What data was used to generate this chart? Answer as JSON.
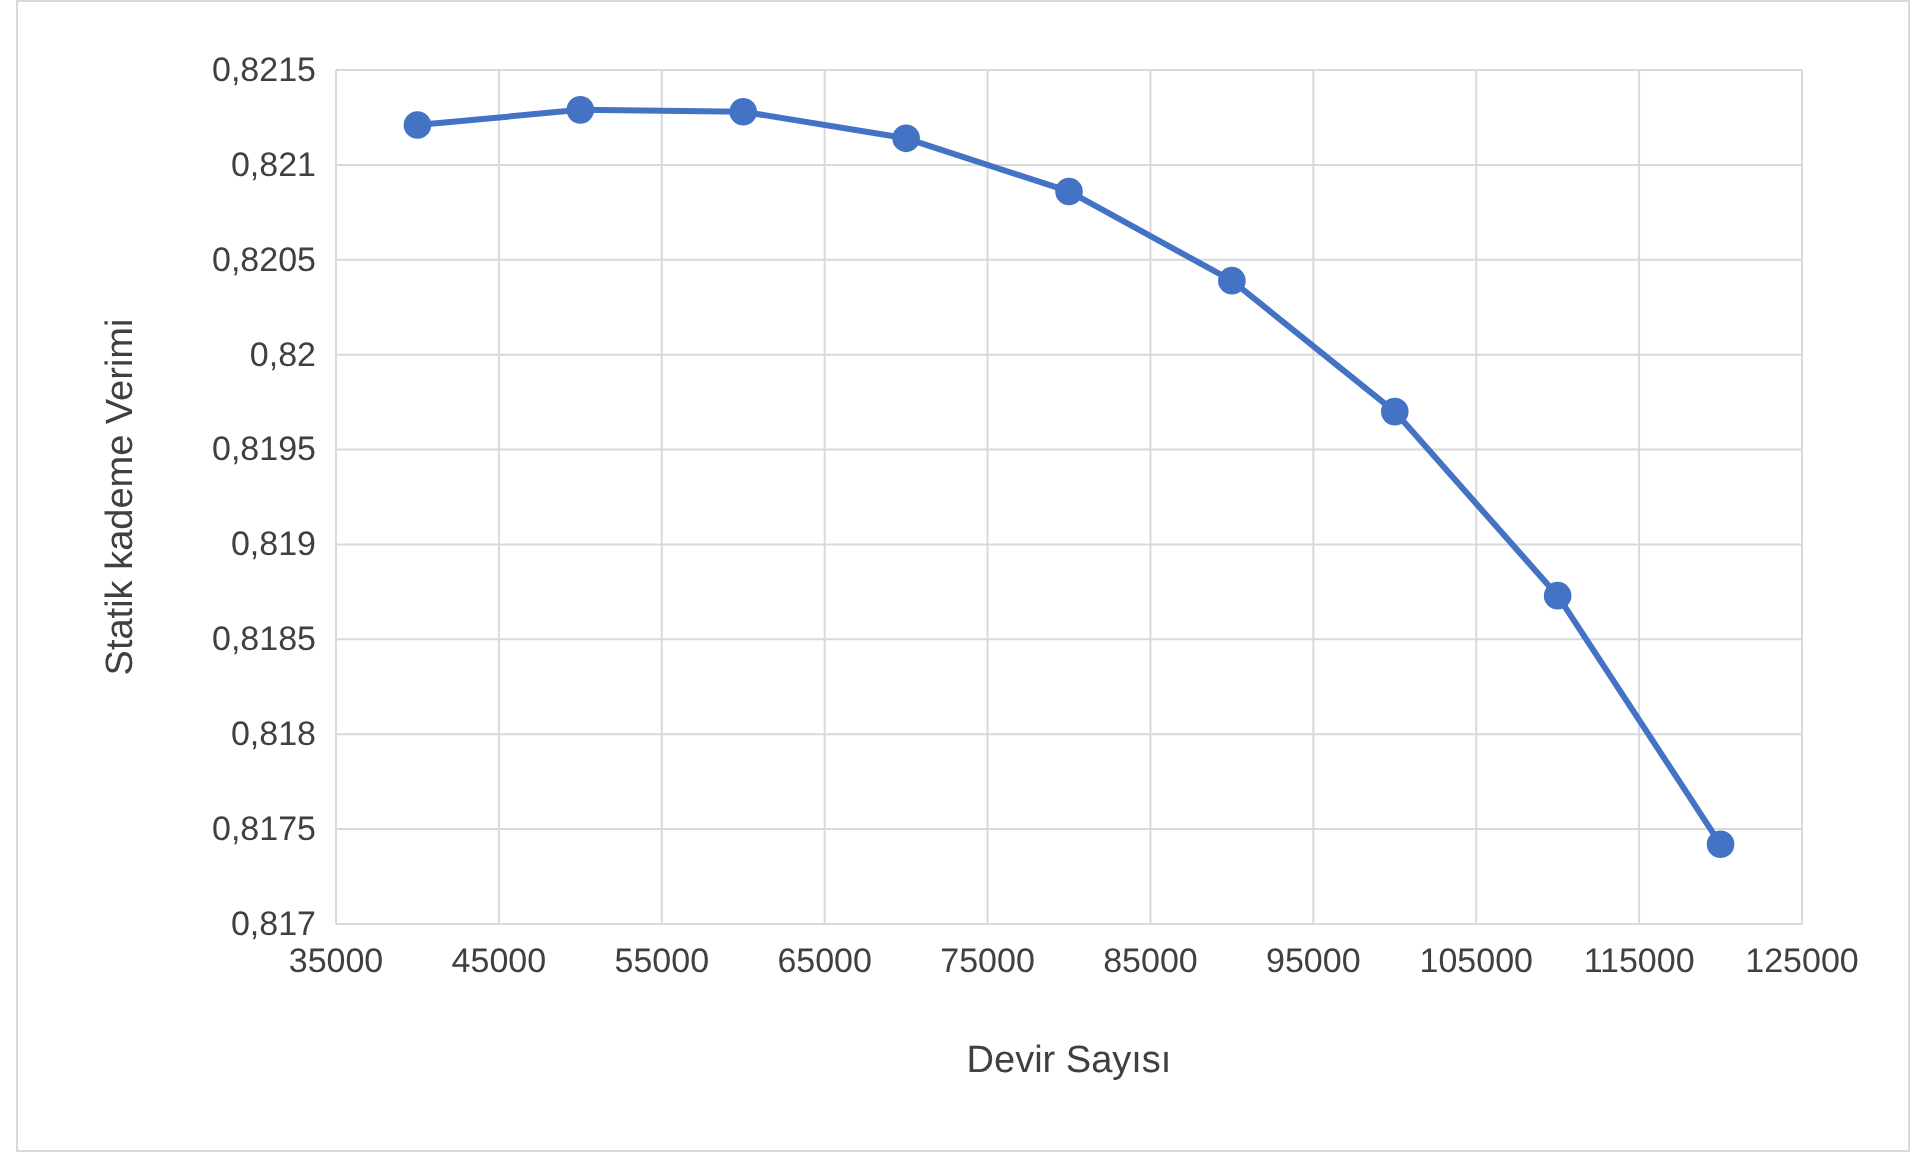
{
  "chart_data": {
    "type": "line",
    "xlabel": "Devir Sayısı",
    "ylabel": "Statik kademe Verimi",
    "x": [
      40000,
      50000,
      60000,
      70000,
      80000,
      90000,
      100000,
      110000,
      120000
    ],
    "series": [
      {
        "color": "#4472c4",
        "values": [
          0.82121,
          0.82129,
          0.82128,
          0.82114,
          0.82086,
          0.82039,
          0.8197,
          0.81873,
          0.81742
        ]
      }
    ],
    "xlim": [
      35000,
      125000
    ],
    "xticks": [
      35000,
      45000,
      55000,
      65000,
      75000,
      85000,
      95000,
      105000,
      115000,
      125000
    ],
    "ylim": [
      0.817,
      0.8215
    ],
    "yticks": [
      {
        "value": 0.817,
        "label": "0,817"
      },
      {
        "value": 0.8175,
        "label": "0,8175"
      },
      {
        "value": 0.818,
        "label": "0,818"
      },
      {
        "value": 0.8185,
        "label": "0,8185"
      },
      {
        "value": 0.819,
        "label": "0,819"
      },
      {
        "value": 0.8195,
        "label": "0,8195"
      },
      {
        "value": 0.82,
        "label": "0,82"
      },
      {
        "value": 0.8205,
        "label": "0,8205"
      },
      {
        "value": 0.821,
        "label": "0,821"
      },
      {
        "value": 0.8215,
        "label": "0,8215"
      }
    ],
    "grid": true,
    "marker": "circle",
    "line_style": "solid"
  }
}
